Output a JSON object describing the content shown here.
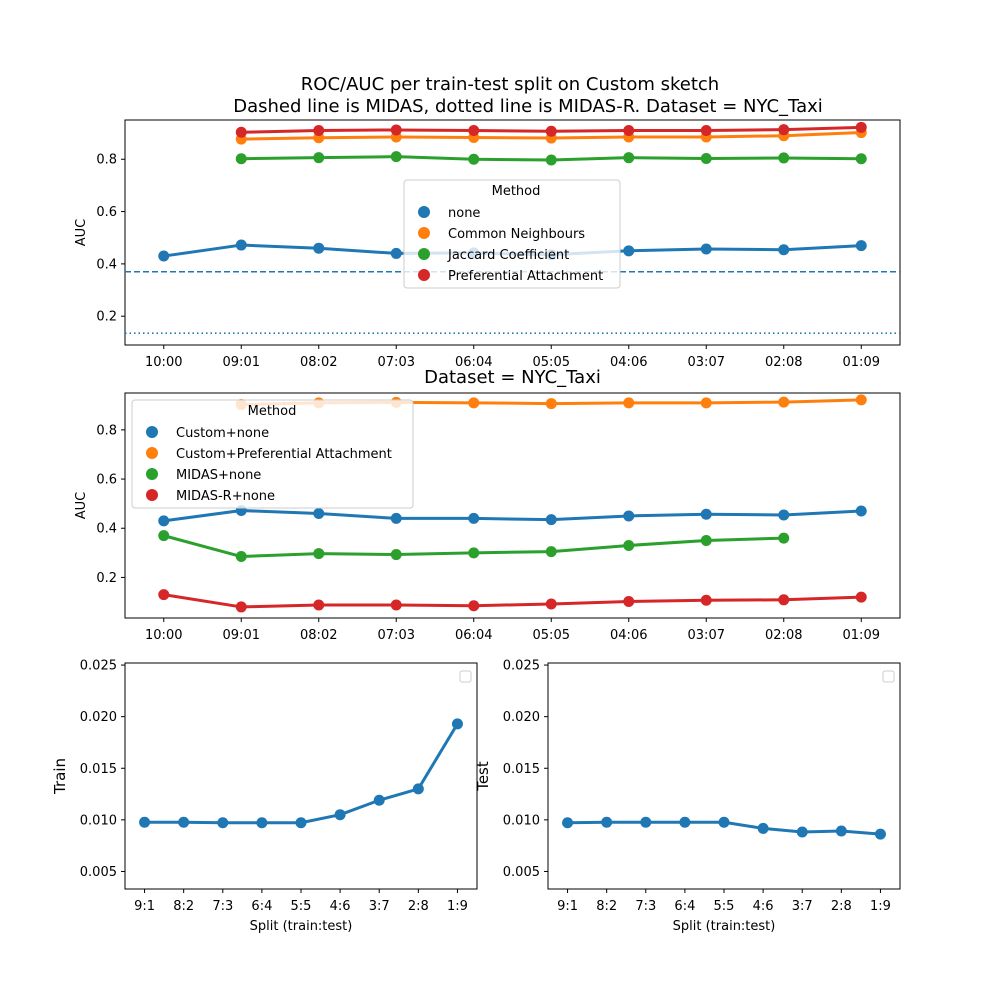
{
  "figure": {
    "title_line1": "ROC/AUC per train-test split on Custom sketch",
    "title_line2": "Dashed line is MIDAS, dotted line is MIDAS-R. Dataset = NYC_Taxi"
  },
  "colors": {
    "blue": "#1f77b4",
    "orange": "#ff7f0e",
    "green": "#2ca02c",
    "red": "#d62728"
  },
  "chart_data": [
    {
      "type": "line",
      "title": "",
      "xlabel": "",
      "ylabel": "AUC",
      "categories": [
        "10:00",
        "09:01",
        "08:02",
        "07:03",
        "06:04",
        "05:05",
        "04:06",
        "03:07",
        "02:08",
        "01:09"
      ],
      "ylim": [
        0.09,
        0.95
      ],
      "yticks": [
        0.2,
        0.4,
        0.6,
        0.8
      ],
      "ytick_labels": [
        "0.2",
        "0.4",
        "0.6",
        "0.8"
      ],
      "legend": {
        "title": "Method",
        "placement": "center"
      },
      "series": [
        {
          "name": "none",
          "color": "#1f77b4",
          "values": [
            0.43,
            0.472,
            0.46,
            0.44,
            0.442,
            0.435,
            0.45,
            0.457,
            0.454,
            0.47
          ]
        },
        {
          "name": "Common Neighbours",
          "color": "#ff7f0e",
          "values": [
            null,
            0.877,
            0.882,
            0.885,
            0.883,
            0.881,
            0.885,
            0.885,
            0.89,
            0.902
          ]
        },
        {
          "name": "Jaccard Coefficient",
          "color": "#2ca02c",
          "values": [
            null,
            0.802,
            0.806,
            0.81,
            0.8,
            0.797,
            0.806,
            0.803,
            0.805,
            0.802
          ]
        },
        {
          "name": "Preferential Attachment",
          "color": "#d62728",
          "values": [
            null,
            0.903,
            0.91,
            0.912,
            0.91,
            0.907,
            0.91,
            0.91,
            0.913,
            0.922
          ]
        }
      ],
      "reference_lines": [
        {
          "style": "dashed",
          "color": "#1f77b4",
          "value": 0.37
        },
        {
          "style": "dotted",
          "color": "#1f77b4",
          "value": 0.135
        }
      ]
    },
    {
      "type": "line",
      "title": "Dataset = NYC_Taxi",
      "xlabel": "",
      "ylabel": "AUC",
      "categories": [
        "10:00",
        "09:01",
        "08:02",
        "07:03",
        "06:04",
        "05:05",
        "04:06",
        "03:07",
        "02:08",
        "01:09"
      ],
      "ylim": [
        0.035,
        0.95
      ],
      "yticks": [
        0.2,
        0.4,
        0.6,
        0.8
      ],
      "ytick_labels": [
        "0.2",
        "0.4",
        "0.6",
        "0.8"
      ],
      "legend": {
        "title": "Method",
        "placement": "upper left"
      },
      "series": [
        {
          "name": "Custom+none",
          "color": "#1f77b4",
          "values": [
            0.43,
            0.472,
            0.46,
            0.44,
            0.44,
            0.435,
            0.45,
            0.457,
            0.454,
            0.47
          ]
        },
        {
          "name": "Custom+Preferential Attachment",
          "color": "#ff7f0e",
          "values": [
            null,
            0.903,
            0.91,
            0.912,
            0.91,
            0.907,
            0.91,
            0.91,
            0.913,
            0.922
          ]
        },
        {
          "name": "MIDAS+none",
          "color": "#2ca02c",
          "values": [
            0.37,
            0.285,
            0.297,
            0.293,
            0.3,
            0.305,
            0.33,
            0.35,
            0.36,
            null
          ]
        },
        {
          "name": "MIDAS-R+none",
          "color": "#d62728",
          "values": [
            0.13,
            0.08,
            0.088,
            0.088,
            0.085,
            0.092,
            0.102,
            0.107,
            0.109,
            0.12
          ]
        }
      ]
    },
    {
      "type": "line",
      "title": "",
      "xlabel": "Split (train:test)",
      "ylabel": "Train",
      "categories": [
        "9:1",
        "8:2",
        "7:3",
        "6:4",
        "5:5",
        "4:6",
        "3:7",
        "2:8",
        "1:9"
      ],
      "ylim": [
        0.0033,
        0.0252
      ],
      "yticks": [
        0.005,
        0.01,
        0.015,
        0.02,
        0.025
      ],
      "ytick_labels": [
        "0.005",
        "0.010",
        "0.015",
        "0.020",
        "0.025"
      ],
      "legend": {
        "title": "",
        "placement": "upper right"
      },
      "series": [
        {
          "name": "",
          "color": "#1f77b4",
          "values": [
            0.00977,
            0.00977,
            0.00972,
            0.00972,
            0.00972,
            0.0105,
            0.0119,
            0.013,
            0.0193
          ]
        }
      ]
    },
    {
      "type": "line",
      "title": "",
      "xlabel": "Split (train:test)",
      "ylabel": "Test",
      "categories": [
        "9:1",
        "8:2",
        "7:3",
        "6:4",
        "5:5",
        "4:6",
        "3:7",
        "2:8",
        "1:9"
      ],
      "ylim": [
        0.0033,
        0.0252
      ],
      "yticks": [
        0.005,
        0.01,
        0.015,
        0.02,
        0.025
      ],
      "ytick_labels": [
        "0.005",
        "0.010",
        "0.015",
        "0.020",
        "0.025"
      ],
      "legend": {
        "title": "",
        "placement": "upper right"
      },
      "series": [
        {
          "name": "",
          "color": "#1f77b4",
          "values": [
            0.00972,
            0.00977,
            0.00977,
            0.00977,
            0.00977,
            0.00917,
            0.00882,
            0.00892,
            0.00862
          ]
        }
      ]
    }
  ]
}
